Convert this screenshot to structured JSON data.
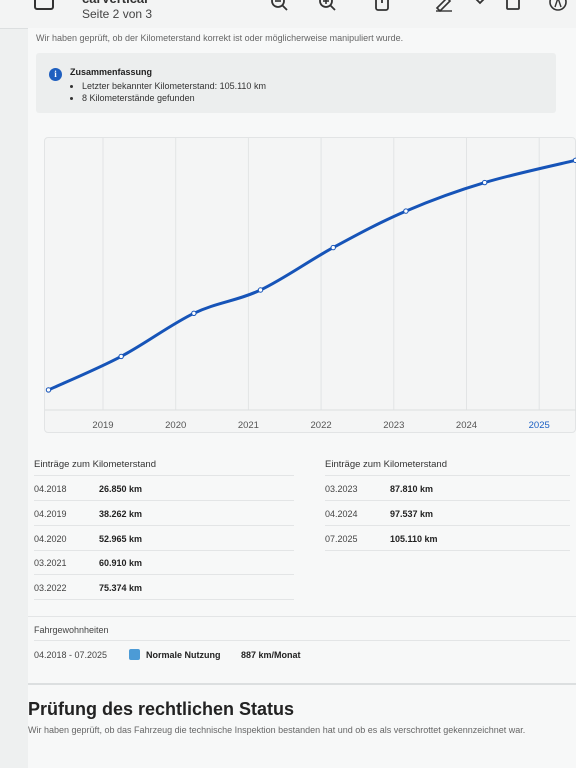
{
  "window": {
    "title": "carVertical",
    "page_indicator": "Seite 2 von 3"
  },
  "toolbar": {
    "icons": [
      "sidebar-icon",
      "zoom-out-icon",
      "zoom-in-icon",
      "share-icon",
      "pencil-icon",
      "chevron-down-icon",
      "crop-icon",
      "markup-icon"
    ]
  },
  "intro_text": "Wir haben geprüft, ob der Kilometerstand korrekt ist oder möglicherweise manipuliert wurde.",
  "summary": {
    "title": "Zusammenfassung",
    "items": [
      "Letzter bekannter Kilometerstand: 105.110 km",
      "8 Kilometerstände gefunden"
    ]
  },
  "chart_data": {
    "type": "line",
    "x_ticks": [
      "2019",
      "2020",
      "2021",
      "2022",
      "2023",
      "2024",
      "2025"
    ],
    "highlight_tick": "2025",
    "x": [
      "04.2018",
      "04.2019",
      "04.2020",
      "03.2021",
      "03.2022",
      "03.2023",
      "04.2024",
      "07.2025"
    ],
    "values": [
      26850,
      38262,
      52965,
      60910,
      75374,
      87810,
      97537,
      105110
    ],
    "grid": "vertical",
    "colors": {
      "line": "#1654b8",
      "highlight": "#1a5fc4"
    }
  },
  "table": {
    "heading_left": "Einträge zum Kilometerstand",
    "heading_right": "Einträge zum Kilometerstand",
    "left_rows": [
      {
        "date": "04.2018",
        "km": "26.850 km"
      },
      {
        "date": "04.2019",
        "km": "38.262 km"
      },
      {
        "date": "04.2020",
        "km": "52.965 km"
      },
      {
        "date": "03.2021",
        "km": "60.910 km"
      },
      {
        "date": "03.2022",
        "km": "75.374 km"
      }
    ],
    "right_rows": [
      {
        "date": "03.2023",
        "km": "87.810 km"
      },
      {
        "date": "04.2024",
        "km": "97.537 km"
      },
      {
        "date": "07.2025",
        "km": "105.110 km"
      }
    ]
  },
  "habits": {
    "heading": "Fahrgewohnheiten",
    "period": "04.2018 - 07.2025",
    "usage_label": "Normale Nutzung",
    "usage_rate": "887 km/Monat",
    "swatch_color": "#4c9bd6"
  },
  "legal": {
    "title": "Prüfung des rechtlichen Status",
    "text": "Wir haben geprüft, ob das Fahrzeug die technische Inspektion bestanden hat und ob es als verschrottet gekennzeichnet war."
  }
}
